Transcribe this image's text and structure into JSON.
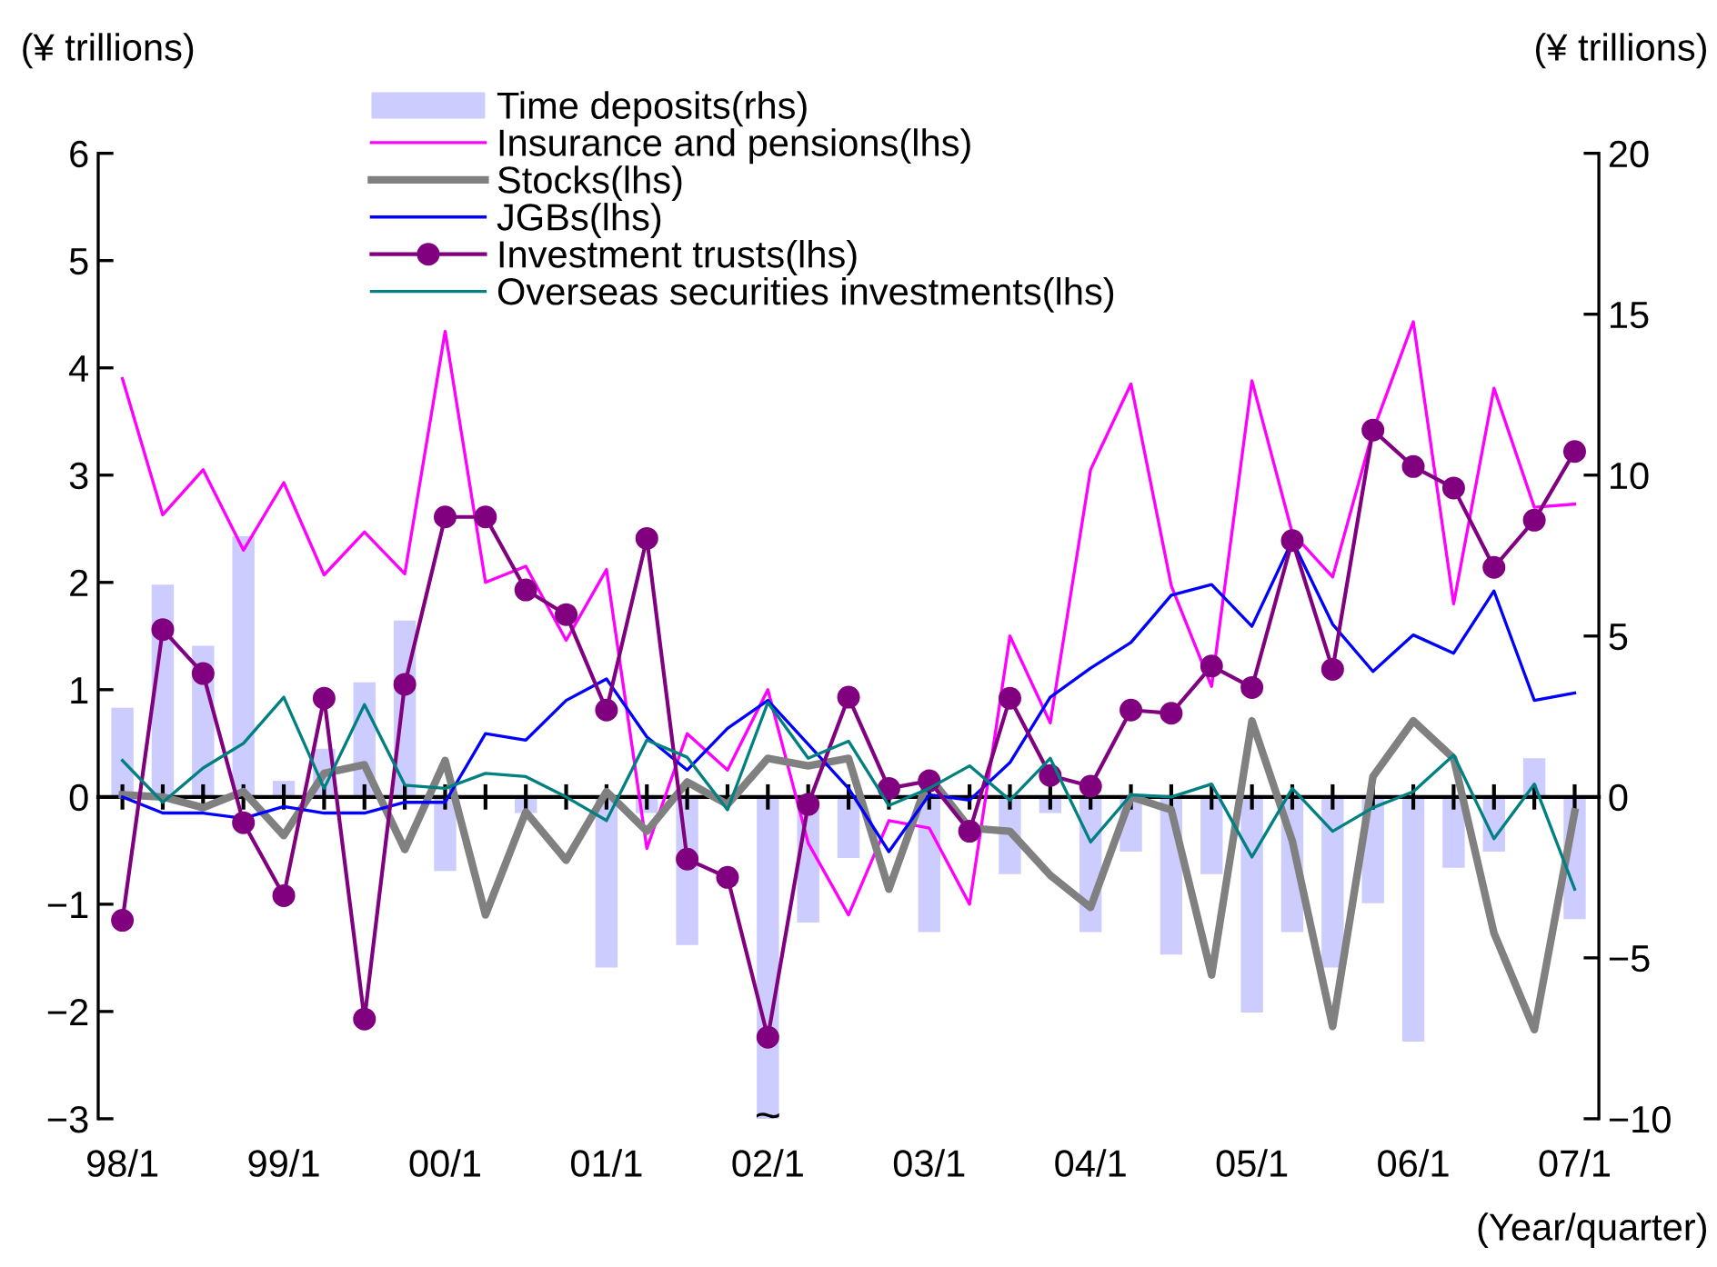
{
  "chart_data": {
    "type": "line",
    "ylabel": "(¥ trillions)",
    "y2label": "(¥ trillions)",
    "xlabel": "(Year/quarter)",
    "categories": [
      "98/1",
      null,
      null,
      null,
      "99/1",
      null,
      null,
      null,
      "00/1",
      null,
      null,
      null,
      "01/1",
      null,
      null,
      null,
      "02/1",
      null,
      null,
      null,
      "03/1",
      null,
      null,
      null,
      "04/1",
      null,
      null,
      null,
      "05/1",
      null,
      null,
      null,
      "06/1",
      null,
      null,
      null,
      "07/1"
    ],
    "ylim": [
      -3,
      6
    ],
    "yticks": [
      -3,
      -2,
      -1,
      0,
      1,
      2,
      3,
      4,
      5,
      6
    ],
    "y2lim": [
      -10,
      20
    ],
    "y2ticks": [
      -10,
      -5,
      0,
      5,
      10,
      15,
      20
    ],
    "legend": "top",
    "annotations": [
      {
        "text": "~",
        "x": "02/1",
        "y": -3
      }
    ],
    "series": [
      {
        "name": "Time deposits(rhs)",
        "type": "bar",
        "axis": "y2",
        "color": "#ccccff",
        "values": [
          2.77,
          6.6,
          4.7,
          8.1,
          0.5,
          1.5,
          3.56,
          5.48,
          -2.3,
          0,
          -0.5,
          null,
          -5.3,
          -0.5,
          -4.6,
          null,
          -10,
          -3.9,
          -1.9,
          null,
          -4.2,
          null,
          -2.4,
          -0.5,
          -4.2,
          -1.7,
          -4.9,
          -2.4,
          -6.7,
          -4.2,
          -5.3,
          -3.3,
          -7.6,
          -2.2,
          -1.7,
          1.2,
          -3.8
        ]
      },
      {
        "name": "Insurance and pensions(lhs)",
        "color": "#ff00ff",
        "marker": "none",
        "values": [
          3.9,
          2.63,
          3.05,
          2.3,
          2.93,
          2.07,
          2.47,
          2.08,
          4.34,
          2.0,
          2.15,
          1.46,
          2.12,
          -0.48,
          0.59,
          0.25,
          1.0,
          -0.43,
          -1.1,
          -0.22,
          -0.29,
          -1.0,
          1.5,
          0.69,
          3.05,
          3.85,
          1.97,
          1.03,
          3.88,
          2.46,
          2.05,
          3.41,
          4.43,
          1.8,
          3.81,
          2.7,
          2.73
        ]
      },
      {
        "name": "Stocks(lhs)",
        "color": "#808080",
        "marker": "none",
        "values": [
          0.02,
          0.0,
          -0.1,
          0.05,
          -0.36,
          0.22,
          0.3,
          -0.49,
          0.34,
          -1.1,
          -0.14,
          -0.59,
          0.05,
          -0.32,
          0.14,
          -0.07,
          0.36,
          0.29,
          0.36,
          -0.86,
          0.19,
          -0.29,
          -0.32,
          -0.73,
          -1.03,
          0.0,
          -0.12,
          -1.66,
          0.71,
          -0.41,
          -2.14,
          0.19,
          0.71,
          0.36,
          -1.27,
          -2.17,
          -0.14
        ]
      },
      {
        "name": "JGBs(lhs)",
        "color": "#0000ff",
        "marker": "none",
        "values": [
          0.0,
          -0.15,
          -0.15,
          -0.2,
          -0.09,
          -0.15,
          -0.15,
          -0.05,
          -0.05,
          0.59,
          0.53,
          0.9,
          1.1,
          0.56,
          0.25,
          0.64,
          0.9,
          0.49,
          0.08,
          -0.51,
          0.02,
          -0.03,
          0.32,
          0.93,
          1.2,
          1.44,
          1.88,
          1.98,
          1.59,
          2.39,
          1.61,
          1.17,
          1.51,
          1.34,
          1.92,
          0.9,
          0.97
        ]
      },
      {
        "name": "Investment trusts(lhs)",
        "color": "#800080",
        "marker": "circle",
        "values": [
          -1.15,
          1.56,
          1.15,
          -0.24,
          -0.92,
          0.92,
          -2.07,
          1.05,
          2.61,
          2.61,
          1.93,
          1.7,
          0.81,
          2.41,
          -0.58,
          -0.75,
          -2.24,
          -0.07,
          0.93,
          0.08,
          0.15,
          -0.32,
          0.92,
          0.2,
          0.1,
          0.81,
          0.78,
          1.22,
          1.02,
          2.39,
          1.19,
          3.42,
          3.08,
          2.88,
          2.14,
          2.58,
          3.22
        ]
      },
      {
        "name": "Overseas securities investments(lhs)",
        "color": "#008080",
        "marker": "none",
        "values": [
          0.34,
          -0.05,
          0.27,
          0.5,
          0.93,
          0.08,
          0.86,
          0.11,
          0.08,
          0.22,
          0.19,
          0.0,
          -0.22,
          0.53,
          0.37,
          -0.12,
          0.88,
          0.36,
          0.52,
          -0.08,
          0.08,
          0.29,
          -0.03,
          0.36,
          -0.42,
          0.02,
          0.0,
          0.12,
          -0.56,
          0.08,
          -0.32,
          -0.1,
          0.05,
          0.39,
          -0.39,
          0.12,
          -0.86
        ]
      }
    ]
  }
}
